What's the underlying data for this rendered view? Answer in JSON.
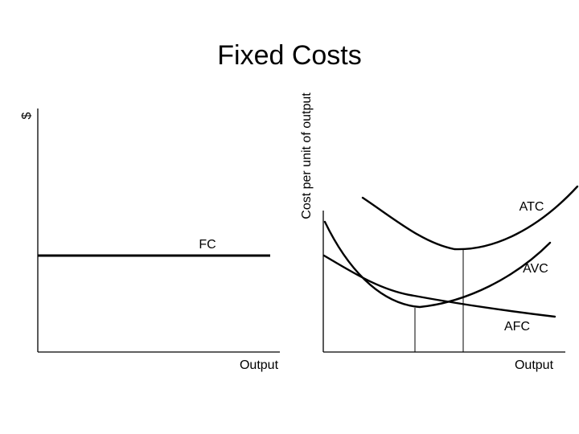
{
  "title": "Fixed Costs",
  "left_panel": {
    "y_axis_label": "$",
    "x_axis_label": "Output",
    "curve_label": "FC"
  },
  "right_panel": {
    "y_axis_label": "Cost per unit of output",
    "x_axis_label": "Output",
    "curves": {
      "atc": "ATC",
      "avc": "AVC",
      "afc": "AFC"
    }
  }
}
